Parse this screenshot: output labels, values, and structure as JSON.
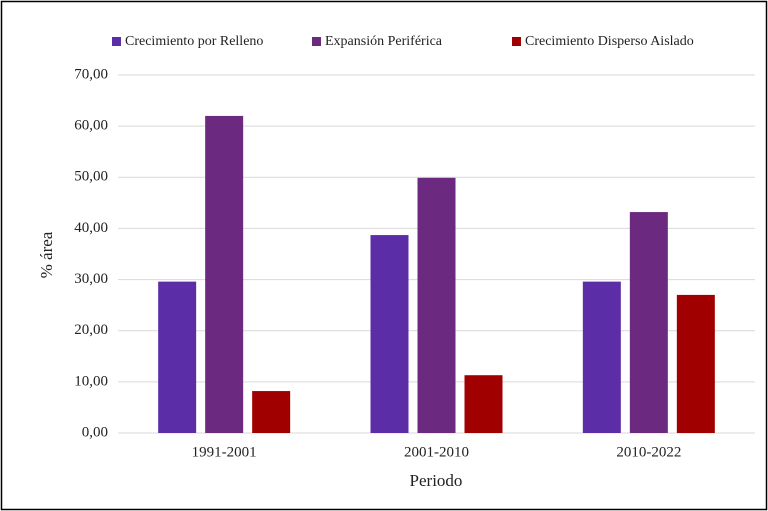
{
  "chart_data": {
    "type": "bar",
    "categories": [
      "1991-2001",
      "2001-2010",
      "2010-2022"
    ],
    "series": [
      {
        "name": "Crecimiento por Relleno",
        "color": "#5b2ea8",
        "values": [
          29.6,
          38.7,
          29.6
        ]
      },
      {
        "name": "Expansión Periférica",
        "color": "#6b2a80",
        "values": [
          62.0,
          49.9,
          43.2
        ]
      },
      {
        "name": "Crecimiento Disperso Aislado",
        "color": "#a00000",
        "values": [
          8.2,
          11.3,
          27.0
        ]
      }
    ],
    "xlabel": "Periodo",
    "ylabel": "% área",
    "ylim": [
      0,
      70
    ],
    "yticks": [
      {
        "value": 0,
        "label": "0,00"
      },
      {
        "value": 10,
        "label": "10,00"
      },
      {
        "value": 20,
        "label": "20,00"
      },
      {
        "value": 30,
        "label": "30,00"
      },
      {
        "value": 40,
        "label": "40,00"
      },
      {
        "value": 50,
        "label": "50,00"
      },
      {
        "value": 60,
        "label": "60,00"
      },
      {
        "value": 70,
        "label": "70,00"
      }
    ],
    "grid": true,
    "legend": "top"
  }
}
